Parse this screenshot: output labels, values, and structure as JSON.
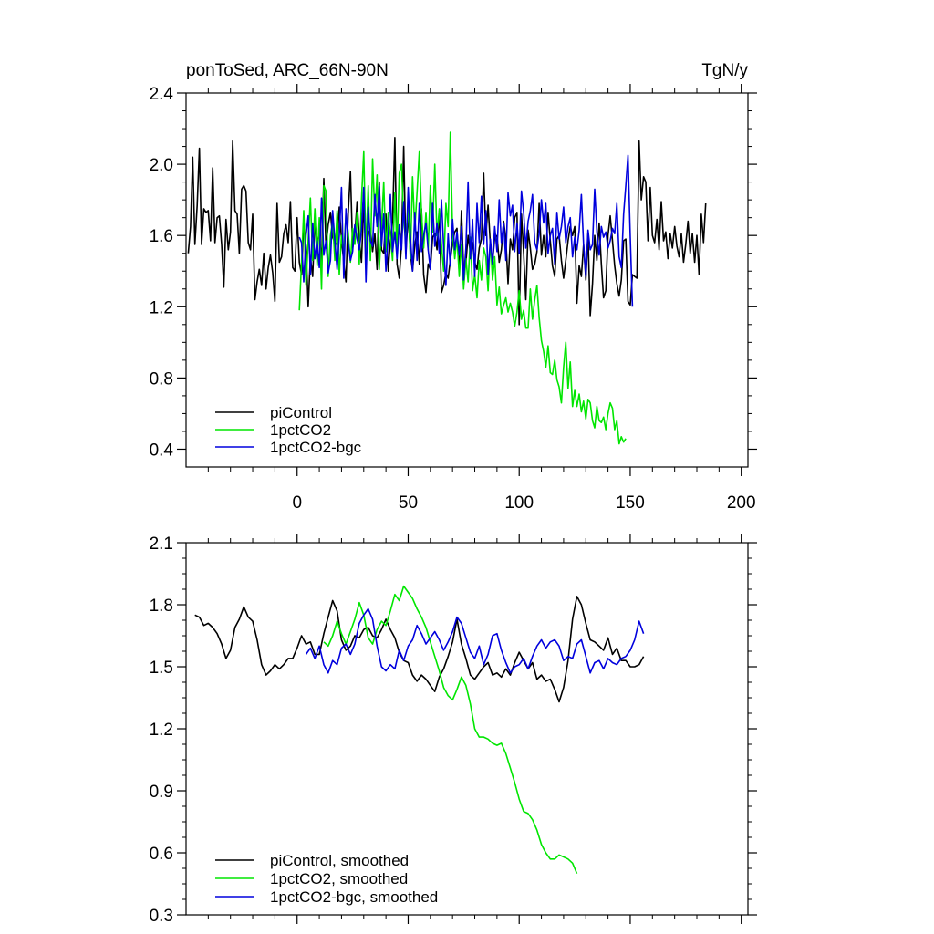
{
  "header": {
    "left_title": "ponToSed, ARC_66N-90N",
    "right_title": "TgN/y"
  },
  "colors": {
    "piControl": "#000000",
    "1pctCO2": "#00e600",
    "1pctCO2-bgc": "#0000dd"
  },
  "chart_data": [
    {
      "type": "line",
      "panel": "top",
      "title": "ponToSed, ARC_66N-90N",
      "units": "TgN/y",
      "xlim": [
        -50,
        203
      ],
      "ylim": [
        0.3,
        2.4
      ],
      "xticks": [
        0,
        50,
        100,
        150,
        200
      ],
      "xtick_labels": [
        "0",
        "50",
        "100",
        "150",
        "200"
      ],
      "yticks": [
        0.4,
        0.8,
        1.2,
        1.6,
        2.0,
        2.4
      ],
      "ytick_labels": [
        "0.4",
        "0.8",
        "1.2",
        "1.6",
        "2.0",
        "2.4"
      ],
      "legend": [
        "piControl",
        "1pctCO2",
        "1pctCO2-bgc"
      ],
      "legend_position": "bottom-left",
      "series": [
        {
          "name": "piControl",
          "x_start": -49,
          "x_step": 1,
          "values": [
            1.5,
            1.65,
            2.04,
            1.55,
            1.77,
            2.09,
            1.55,
            1.75,
            1.73,
            1.74,
            1.57,
            1.98,
            1.56,
            1.7,
            1.71,
            1.55,
            1.31,
            1.69,
            1.52,
            1.62,
            2.13,
            1.74,
            1.72,
            1.5,
            1.86,
            1.88,
            1.85,
            1.56,
            1.52,
            1.72,
            1.24,
            1.34,
            1.41,
            1.32,
            1.5,
            1.3,
            1.42,
            1.49,
            1.39,
            1.23,
            1.78,
            1.45,
            1.48,
            1.61,
            1.66,
            1.56,
            1.79,
            1.42,
            1.4,
            1.7,
            1.45,
            1.38,
            1.68,
            1.54,
            1.2,
            1.48,
            1.37,
            1.68,
            1.55,
            1.62,
            1.44,
            1.92,
            1.53,
            1.66,
            1.73,
            1.59,
            1.56,
            1.55,
            1.76,
            1.58,
            1.45,
            1.34,
            1.72,
            1.96,
            1.53,
            1.6,
            1.79,
            1.58,
            1.45,
            1.78,
            1.5,
            1.61,
            1.64,
            1.51,
            1.61,
            1.41,
            1.9,
            1.52,
            1.5,
            1.72,
            1.4,
            1.57,
            1.68,
            2.15,
            1.44,
            1.36,
            1.55,
            2.1,
            1.5,
            1.72,
            1.5,
            1.4,
            1.55,
            1.62,
            1.44,
            1.75,
            1.38,
            1.28,
            1.44,
            1.41,
            1.59,
            1.61,
            1.52,
            1.74,
            1.28,
            1.32,
            1.39,
            1.36,
            1.46,
            1.56,
            1.62,
            1.64,
            1.39,
            1.74,
            1.41,
            1.45,
            1.6,
            1.5,
            1.56,
            1.45,
            1.41,
            1.53,
            1.58,
            1.95,
            1.6,
            1.77,
            1.55,
            1.45,
            1.59,
            1.6,
            1.45,
            1.52,
            1.68,
            1.58,
            1.33,
            1.58,
            1.52,
            1.7,
            1.73,
            1.1,
            1.72,
            1.5,
            1.24,
            1.63,
            1.53,
            1.41,
            1.44,
            1.51,
            1.78,
            1.49,
            1.6,
            1.48,
            1.73,
            1.57,
            1.43,
            1.37,
            1.58,
            1.6,
            1.46,
            1.36,
            1.46,
            1.57,
            1.65,
            1.6,
            1.65,
            1.22,
            1.43,
            1.37,
            1.55,
            1.35,
            1.61,
            1.15,
            1.33,
            1.6,
            1.46,
            1.67,
            1.44,
            1.25,
            1.29,
            1.6,
            1.71,
            1.57,
            1.43,
            1.33,
            1.26,
            1.35,
            1.57,
            1.58,
            1.23,
            1.21,
            1.38,
            1.37,
            1.36,
            2.13,
            1.8,
            1.93,
            1.9,
            1.57,
            1.87,
            1.6,
            1.56,
            1.69,
            1.52,
            1.79,
            1.57,
            1.62,
            1.47,
            1.61,
            1.53,
            1.65,
            1.54,
            1.48,
            1.61,
            1.45,
            1.55,
            1.68,
            1.5,
            1.61,
            1.45,
            1.6,
            1.38,
            1.72,
            1.56,
            1.78
          ]
        },
        {
          "name": "1pctCO2",
          "x_start": 1,
          "x_step": 1,
          "values": [
            1.18,
            1.45,
            1.74,
            1.32,
            1.57,
            1.81,
            1.46,
            1.75,
            1.43,
            1.7,
            1.3,
            1.88,
            1.85,
            1.37,
            1.6,
            1.68,
            1.46,
            1.74,
            1.38,
            1.6,
            1.51,
            1.72,
            1.62,
            1.45,
            1.64,
            1.55,
            1.73,
            1.44,
            1.8,
            2.07,
            1.5,
            1.88,
            1.46,
            2.03,
            1.71,
            1.94,
            1.41,
            1.65,
            1.9,
            1.51,
            1.73,
            1.6,
            1.46,
            1.84,
            1.52,
            1.95,
            2.0,
            1.68,
            1.56,
            1.78,
            1.47,
            1.93,
            1.63,
            1.84,
            2.07,
            1.73,
            1.53,
            1.73,
            1.52,
            1.88,
            1.62,
            2.0,
            1.6,
            1.75,
            1.55,
            1.4,
            1.78,
            1.65,
            2.18,
            1.62,
            1.47,
            1.59,
            1.37,
            1.55,
            1.3,
            1.47,
            1.34,
            1.59,
            1.29,
            1.38,
            1.25,
            1.46,
            1.35,
            1.53,
            1.48,
            1.29,
            1.57,
            1.35,
            1.48,
            1.21,
            1.31,
            1.16,
            1.21,
            1.25,
            1.17,
            1.22,
            1.17,
            1.09,
            1.17,
            1.29,
            1.13,
            1.18,
            1.08,
            1.08,
            1.3,
            1.13,
            1.24,
            1.32,
            1.14,
            1.01,
            0.95,
            0.86,
            0.98,
            0.83,
            0.82,
            0.9,
            0.79,
            0.75,
            0.66,
            0.86,
            1.0,
            0.74,
            0.89,
            0.64,
            0.73,
            0.64,
            0.71,
            0.61,
            0.67,
            0.57,
            0.68,
            0.66,
            0.56,
            0.52,
            0.64,
            0.56,
            0.55,
            0.58,
            0.51,
            0.6,
            0.66,
            0.63,
            0.51,
            0.56,
            0.43,
            0.47,
            0.44,
            0.46
          ]
        },
        {
          "name": "1pctCO2-bgc",
          "x_start": 1,
          "x_step": 1,
          "values": [
            1.59,
            1.56,
            1.34,
            1.6,
            1.71,
            1.38,
            1.67,
            1.47,
            1.57,
            1.42,
            1.81,
            1.49,
            1.57,
            1.39,
            1.46,
            1.74,
            1.57,
            1.41,
            1.6,
            1.87,
            1.36,
            1.75,
            1.56,
            1.46,
            1.51,
            1.66,
            1.58,
            1.52,
            1.63,
            1.87,
            1.34,
            1.76,
            1.57,
            1.54,
            1.83,
            1.65,
            1.88,
            1.54,
            1.72,
            1.4,
            1.6,
            1.83,
            1.51,
            1.62,
            1.47,
            1.66,
            1.52,
            1.79,
            1.47,
            1.87,
            1.6,
            1.4,
            1.73,
            1.46,
            1.78,
            1.51,
            1.6,
            1.67,
            1.52,
            1.41,
            1.78,
            1.54,
            1.67,
            1.5,
            1.8,
            1.54,
            1.32,
            1.61,
            1.43,
            1.69,
            1.52,
            1.62,
            1.49,
            1.65,
            1.35,
            1.53,
            1.9,
            1.47,
            1.69,
            1.37,
            1.78,
            1.56,
            1.82,
            1.55,
            1.74,
            1.38,
            1.58,
            1.44,
            1.65,
            1.51,
            1.8,
            1.56,
            1.67,
            1.46,
            1.84,
            1.71,
            1.77,
            1.51,
            1.67,
            1.5,
            1.85,
            1.73,
            1.53,
            1.68,
            1.74,
            1.83,
            1.56,
            1.52,
            1.61,
            1.8,
            1.67,
            1.78,
            1.5,
            1.6,
            1.64,
            1.44,
            1.73,
            1.58,
            1.65,
            1.76,
            1.56,
            1.65,
            1.7,
            1.48,
            1.59,
            1.52,
            1.63,
            1.83,
            1.55,
            1.37,
            1.63,
            1.52,
            1.55,
            1.86,
            1.62,
            1.49,
            1.65,
            1.59,
            1.62,
            1.53,
            1.57,
            1.64,
            1.61,
            1.78,
            1.48,
            1.42,
            1.72,
            1.88,
            2.05,
            1.59,
            1.2
          ]
        }
      ]
    },
    {
      "type": "line",
      "panel": "bottom",
      "xlim": [
        -50,
        203
      ],
      "ylim": [
        0.3,
        2.1
      ],
      "xticks": [
        0,
        50,
        100,
        150,
        200
      ],
      "yticks": [
        0.3,
        0.6,
        0.9,
        1.2,
        1.5,
        1.8,
        2.1
      ],
      "ytick_labels": [
        "0.3",
        "0.6",
        "0.9",
        "1.2",
        "1.5",
        "1.8",
        "2.1"
      ],
      "legend": [
        "piControl, smoothed",
        "1pctCO2, smoothed",
        "1pctCO2-bgc, smoothed"
      ],
      "legend_position": "bottom-left",
      "series": [
        {
          "name": "piControl, smoothed",
          "x_start": -46,
          "x_step": 2,
          "values": [
            1.75,
            1.74,
            1.7,
            1.71,
            1.69,
            1.66,
            1.61,
            1.54,
            1.58,
            1.69,
            1.73,
            1.79,
            1.74,
            1.72,
            1.63,
            1.51,
            1.46,
            1.48,
            1.51,
            1.49,
            1.51,
            1.54,
            1.54,
            1.59,
            1.65,
            1.61,
            1.62,
            1.56,
            1.56,
            1.66,
            1.74,
            1.82,
            1.77,
            1.63,
            1.58,
            1.6,
            1.65,
            1.64,
            1.68,
            1.69,
            1.65,
            1.64,
            1.68,
            1.73,
            1.68,
            1.64,
            1.57,
            1.53,
            1.52,
            1.46,
            1.43,
            1.46,
            1.44,
            1.41,
            1.38,
            1.45,
            1.49,
            1.55,
            1.62,
            1.73,
            1.61,
            1.54,
            1.46,
            1.44,
            1.47,
            1.5,
            1.52,
            1.46,
            1.47,
            1.45,
            1.49,
            1.46,
            1.52,
            1.57,
            1.53,
            1.49,
            1.52,
            1.44,
            1.46,
            1.43,
            1.44,
            1.39,
            1.33,
            1.4,
            1.53,
            1.73,
            1.84,
            1.8,
            1.71,
            1.63,
            1.62,
            1.6,
            1.58,
            1.64,
            1.56,
            1.59,
            1.53,
            1.53,
            1.5,
            1.5,
            1.51,
            1.55
          ]
        },
        {
          "name": "1pctCO2, smoothed",
          "x_start": 12,
          "x_step": 2,
          "values": [
            1.62,
            1.6,
            1.65,
            1.72,
            1.66,
            1.61,
            1.67,
            1.73,
            1.81,
            1.75,
            1.64,
            1.61,
            1.68,
            1.72,
            1.7,
            1.77,
            1.85,
            1.82,
            1.89,
            1.86,
            1.83,
            1.78,
            1.74,
            1.69,
            1.62,
            1.55,
            1.48,
            1.4,
            1.36,
            1.34,
            1.39,
            1.45,
            1.41,
            1.32,
            1.2,
            1.16,
            1.16,
            1.15,
            1.13,
            1.12,
            1.13,
            1.08,
            1.01,
            0.94,
            0.86,
            0.8,
            0.79,
            0.76,
            0.71,
            0.64,
            0.6,
            0.57,
            0.57,
            0.59,
            0.58,
            0.57,
            0.55,
            0.5
          ]
        },
        {
          "name": "1pctCO2-bgc, smoothed",
          "x_start": 4,
          "x_step": 2,
          "values": [
            1.56,
            1.59,
            1.54,
            1.6,
            1.51,
            1.47,
            1.53,
            1.51,
            1.59,
            1.61,
            1.56,
            1.61,
            1.71,
            1.75,
            1.78,
            1.73,
            1.6,
            1.5,
            1.48,
            1.51,
            1.49,
            1.58,
            1.53,
            1.6,
            1.63,
            1.7,
            1.66,
            1.61,
            1.64,
            1.67,
            1.63,
            1.58,
            1.62,
            1.67,
            1.74,
            1.71,
            1.64,
            1.57,
            1.54,
            1.6,
            1.51,
            1.56,
            1.65,
            1.66,
            1.58,
            1.52,
            1.47,
            1.5,
            1.51,
            1.54,
            1.49,
            1.55,
            1.6,
            1.63,
            1.59,
            1.62,
            1.63,
            1.6,
            1.53,
            1.55,
            1.54,
            1.61,
            1.63,
            1.55,
            1.47,
            1.52,
            1.53,
            1.49,
            1.54,
            1.52,
            1.51,
            1.54,
            1.55,
            1.58,
            1.63,
            1.72,
            1.66
          ]
        }
      ]
    }
  ]
}
